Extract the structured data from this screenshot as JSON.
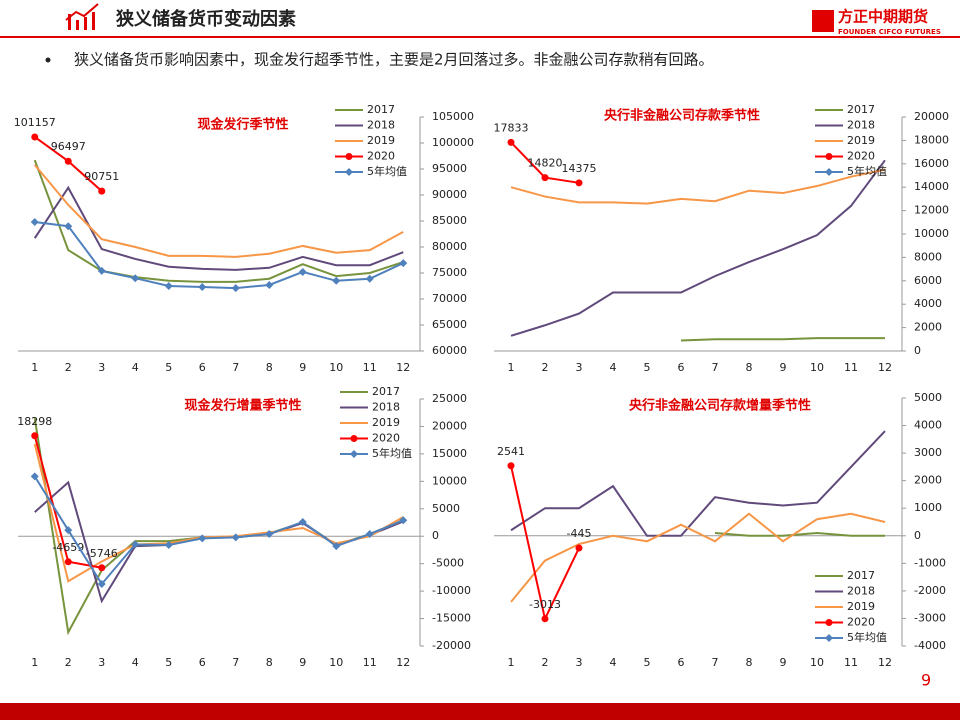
{
  "header": {
    "title": "狭义储备货币变动因素",
    "company": "方正中期期货",
    "company_en": "FOUNDER CIFCO FUTURES"
  },
  "bullet": "狭义储备货币影响因素中，现金发行超季节性，主要是2月回落过多。非金融公司存款稍有回路。",
  "page_number": "9",
  "chart_data": [
    {
      "type": "line",
      "title": "现金发行季节性",
      "legend": "upper right",
      "categories": [
        "1",
        "2",
        "3",
        "4",
        "5",
        "6",
        "7",
        "8",
        "9",
        "10",
        "11",
        "12"
      ],
      "ylim": [
        60000,
        105000
      ],
      "yticks": [
        60000,
        65000,
        70000,
        75000,
        80000,
        85000,
        90000,
        95000,
        100000,
        105000
      ],
      "series": [
        {
          "name": "2017",
          "color": "#77933c",
          "values": [
            96700,
            79400,
            75400,
            74200,
            73500,
            73300,
            73300,
            73900,
            76700,
            74400,
            75000,
            77100
          ]
        },
        {
          "name": "2018",
          "color": "#604a7b",
          "values": [
            81700,
            91400,
            79600,
            77700,
            76200,
            75800,
            75600,
            76000,
            78100,
            76500,
            76500,
            79000
          ]
        },
        {
          "name": "2019",
          "color": "#f79646",
          "values": [
            95800,
            88100,
            81500,
            80000,
            78300,
            78300,
            78100,
            78700,
            80200,
            78900,
            79400,
            82900
          ]
        },
        {
          "name": "2020",
          "color": "#ff0000",
          "values": [
            101157,
            96497,
            90751,
            null,
            null,
            null,
            null,
            null,
            null,
            null,
            null,
            null
          ]
        },
        {
          "name": "5年均值",
          "color": "#4f81bd",
          "values": [
            84800,
            84000,
            75400,
            74000,
            72500,
            72300,
            72100,
            72700,
            75200,
            73500,
            73900,
            76900
          ]
        }
      ]
    },
    {
      "type": "line",
      "title": "央行非金融公司存款季节性",
      "legend": "upper right",
      "categories": [
        "1",
        "2",
        "3",
        "4",
        "5",
        "6",
        "7",
        "8",
        "9",
        "10",
        "11",
        "12"
      ],
      "ylim": [
        0,
        20000
      ],
      "yticks": [
        0,
        2000,
        4000,
        6000,
        8000,
        10000,
        12000,
        14000,
        16000,
        18000,
        20000
      ],
      "series": [
        {
          "name": "2017",
          "color": "#77933c",
          "values": [
            null,
            null,
            null,
            null,
            null,
            900,
            1000,
            1000,
            1000,
            1100,
            1100,
            1100
          ]
        },
        {
          "name": "2018",
          "color": "#604a7b",
          "values": [
            1300,
            2200,
            3200,
            5000,
            5000,
            5000,
            6400,
            7600,
            8700,
            9900,
            12400,
            16300
          ]
        },
        {
          "name": "2019",
          "color": "#f79646",
          "values": [
            14000,
            13200,
            12700,
            12700,
            12600,
            13000,
            12800,
            13700,
            13500,
            14100,
            14900,
            15500
          ]
        },
        {
          "name": "2020",
          "color": "#ff0000",
          "values": [
            17833,
            14820,
            14375,
            null,
            null,
            null,
            null,
            null,
            null,
            null,
            null,
            null
          ]
        },
        {
          "name": "5年均值",
          "color": "#4f81bd",
          "values": [
            null,
            null,
            null,
            null,
            null,
            null,
            null,
            null,
            null,
            null,
            null,
            null
          ]
        }
      ]
    },
    {
      "type": "line",
      "title": "现金发行增量季节性",
      "legend": "upper right",
      "categories": [
        "1",
        "2",
        "3",
        "4",
        "5",
        "6",
        "7",
        "8",
        "9",
        "10",
        "11",
        "12"
      ],
      "ylim": [
        -20000,
        25000
      ],
      "yticks": [
        -20000,
        -15000,
        -10000,
        -5000,
        0,
        5000,
        10000,
        15000,
        20000,
        25000
      ],
      "series": [
        {
          "name": "2017",
          "color": "#77933c",
          "values": [
            21500,
            -17500,
            -6200,
            -900,
            -900,
            -200,
            -200,
            500,
            2500,
            -1600,
            400,
            2900
          ]
        },
        {
          "name": "2018",
          "color": "#604a7b",
          "values": [
            4400,
            9800,
            -11800,
            -1800,
            -1600,
            -200,
            -200,
            400,
            2400,
            -1600,
            200,
            2700
          ]
        },
        {
          "name": "2019",
          "color": "#f79646",
          "values": [
            16800,
            -8200,
            -4600,
            -1500,
            -1300,
            -200,
            0,
            700,
            1500,
            -1300,
            0,
            3500
          ]
        },
        {
          "name": "2020",
          "color": "#ff0000",
          "values": [
            18298,
            -4659,
            -5746,
            null,
            null,
            null,
            null,
            null,
            null,
            null,
            null,
            null
          ]
        },
        {
          "name": "5年均值",
          "color": "#4f81bd",
          "values": [
            10900,
            1100,
            -8700,
            -1500,
            -1600,
            -400,
            -200,
            400,
            2600,
            -1800,
            400,
            2900
          ]
        }
      ]
    },
    {
      "type": "line",
      "title": "央行非金融公司存款增量季节性",
      "legend": "lower right",
      "categories": [
        "1",
        "2",
        "3",
        "4",
        "5",
        "6",
        "7",
        "8",
        "9",
        "10",
        "11",
        "12"
      ],
      "ylim": [
        -4000,
        5000
      ],
      "yticks": [
        -4000,
        -3000,
        -2000,
        -1000,
        0,
        1000,
        2000,
        3000,
        4000,
        5000
      ],
      "series": [
        {
          "name": "2017",
          "color": "#77933c",
          "values": [
            null,
            null,
            null,
            null,
            null,
            null,
            100,
            0,
            0,
            100,
            0,
            0
          ]
        },
        {
          "name": "2018",
          "color": "#604a7b",
          "values": [
            200,
            1000,
            1000,
            1800,
            0,
            0,
            1400,
            1200,
            1100,
            1200,
            2500,
            3800
          ]
        },
        {
          "name": "2019",
          "color": "#f79646",
          "values": [
            -2400,
            -900,
            -300,
            0,
            -200,
            400,
            -200,
            800,
            -200,
            600,
            800,
            500
          ]
        },
        {
          "name": "2020",
          "color": "#ff0000",
          "values": [
            2541,
            -3013,
            -445,
            null,
            null,
            null,
            null,
            null,
            null,
            null,
            null,
            null
          ]
        },
        {
          "name": "5年均值",
          "color": "#4f81bd",
          "values": [
            null,
            null,
            null,
            null,
            null,
            null,
            null,
            null,
            null,
            null,
            null,
            null
          ]
        }
      ]
    }
  ]
}
